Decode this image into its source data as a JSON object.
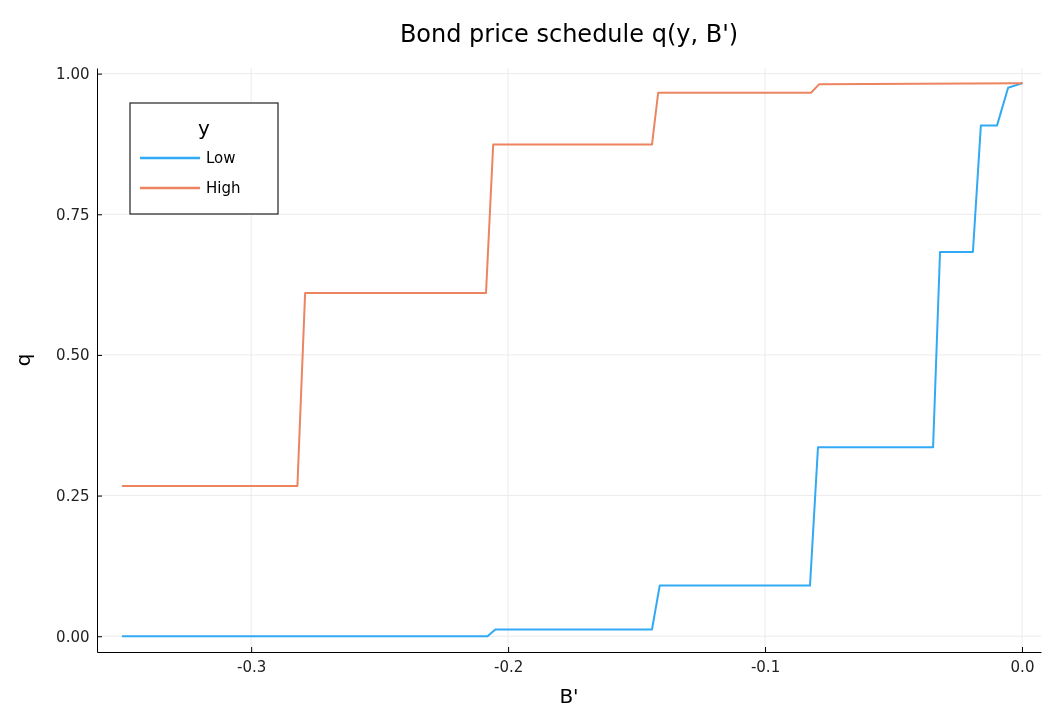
{
  "chart_data": {
    "type": "line",
    "title": "Bond price schedule q(y, B')",
    "xlabel": "B'",
    "ylabel": "q",
    "legend_title": "y",
    "legend": "top left",
    "grid": true,
    "xlim": [
      -0.36,
      0.0074
    ],
    "xticks": [
      {
        "value": -0.3,
        "label": "-0.3"
      },
      {
        "value": -0.2,
        "label": "-0.2"
      },
      {
        "value": -0.1,
        "label": "-0.1"
      },
      {
        "value": 0,
        "label": "0.0"
      }
    ],
    "ylim": [
      -0.028,
      1.01
    ],
    "yticks": [
      {
        "value": 0,
        "label": "0.00"
      },
      {
        "value": 0.25,
        "label": "0.25"
      },
      {
        "value": 0.5,
        "label": "0.50"
      },
      {
        "value": 0.75,
        "label": "0.75"
      },
      {
        "value": 1,
        "label": "1.00"
      }
    ],
    "series": [
      {
        "name": "Low",
        "color": "#32a9f5",
        "x": [
          -0.35,
          -0.208,
          -0.205,
          -0.144,
          -0.141,
          -0.0825,
          -0.0794,
          -0.0346,
          -0.0319,
          -0.0191,
          -0.016,
          -0.0097,
          -0.0054,
          0
        ],
        "values": [
          0,
          0,
          0.012,
          0.012,
          0.09,
          0.09,
          0.336,
          0.336,
          0.683,
          0.683,
          0.908,
          0.908,
          0.975,
          0.983
        ]
      },
      {
        "name": "High",
        "color": "#ec8461",
        "x": [
          -0.35,
          -0.282,
          -0.279,
          -0.2086,
          -0.2058,
          -0.144,
          -0.1416,
          -0.0821,
          -0.079,
          0
        ],
        "values": [
          0.267,
          0.267,
          0.61,
          0.61,
          0.874,
          0.874,
          0.966,
          0.966,
          0.981,
          0.983
        ]
      }
    ]
  }
}
